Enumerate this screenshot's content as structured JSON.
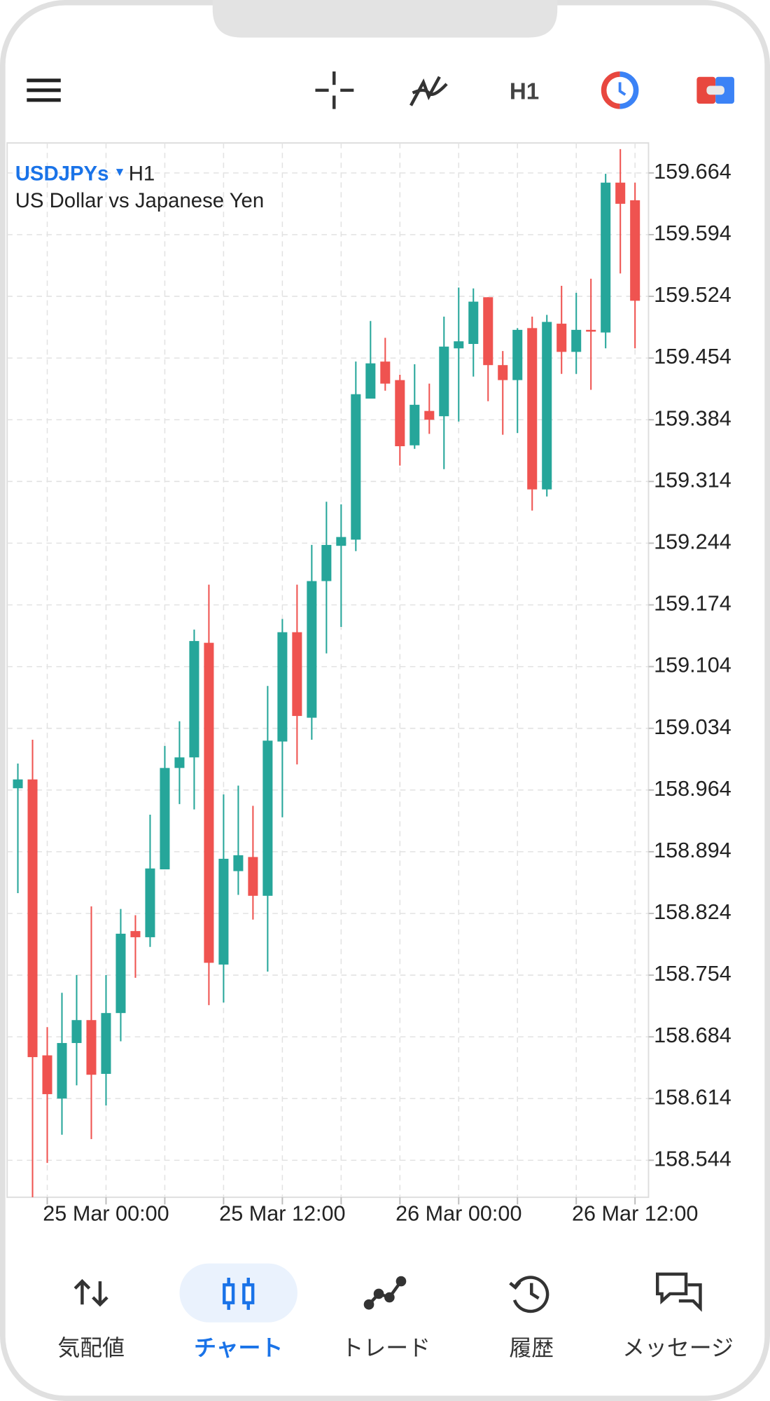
{
  "toolbar": {
    "timeframe": "H1"
  },
  "chart_data": {
    "type": "candlestick",
    "symbol": "USDJPYs",
    "timeframe": "H1",
    "description": "US Dollar vs Japanese Yen",
    "categories": [
      null,
      null,
      null,
      null,
      null,
      null,
      "25 Mar 00:00",
      null,
      null,
      null,
      null,
      null,
      null,
      null,
      null,
      null,
      null,
      null,
      "25 Mar 12:00",
      null,
      null,
      null,
      null,
      null,
      null,
      null,
      null,
      null,
      null,
      null,
      "26 Mar 00:00",
      null,
      null,
      null,
      null,
      null,
      null,
      null,
      null,
      null,
      null,
      null,
      "26 Mar 12:00"
    ],
    "open": [
      158.966,
      158.976,
      158.663,
      158.614,
      158.677,
      158.703,
      158.642,
      158.711,
      158.804,
      158.797,
      158.874,
      158.989,
      159.001,
      159.131,
      158.766,
      158.872,
      158.888,
      158.844,
      159.019,
      159.143,
      159.046,
      159.201,
      159.241,
      159.248,
      159.408,
      159.45,
      159.429,
      159.355,
      159.394,
      159.388,
      159.465,
      159.47,
      159.523,
      159.446,
      159.429,
      159.488,
      159.305,
      159.493,
      159.461,
      159.486,
      159.483,
      159.653,
      159.633
    ],
    "high": [
      158.994,
      159.021,
      158.695,
      158.734,
      158.754,
      158.832,
      158.754,
      158.829,
      158.822,
      158.936,
      159.014,
      159.042,
      159.146,
      159.197,
      158.959,
      158.969,
      158.946,
      159.082,
      159.158,
      159.197,
      159.242,
      159.291,
      159.288,
      159.45,
      159.496,
      159.477,
      159.435,
      159.447,
      159.425,
      159.501,
      159.534,
      159.533,
      159.523,
      159.462,
      159.488,
      159.501,
      159.503,
      159.536,
      159.528,
      159.544,
      159.663,
      159.691,
      159.653
    ],
    "low": [
      158.847,
      158.502,
      158.541,
      158.573,
      158.629,
      158.568,
      158.606,
      158.679,
      158.751,
      158.786,
      158.874,
      158.948,
      158.942,
      158.72,
      158.723,
      158.845,
      158.817,
      158.758,
      158.933,
      158.993,
      159.021,
      159.119,
      159.149,
      159.235,
      159.408,
      159.417,
      159.332,
      159.351,
      159.368,
      159.328,
      159.382,
      159.433,
      159.405,
      159.367,
      159.369,
      159.281,
      159.297,
      159.436,
      159.436,
      159.418,
      159.465,
      159.55,
      159.465
    ],
    "close": [
      158.976,
      158.661,
      158.619,
      158.677,
      158.703,
      158.641,
      158.711,
      158.801,
      158.797,
      158.875,
      158.989,
      159.001,
      159.133,
      158.768,
      158.886,
      158.89,
      158.844,
      159.02,
      159.143,
      159.048,
      159.201,
      159.242,
      159.251,
      159.413,
      159.448,
      159.425,
      159.354,
      159.401,
      159.384,
      159.467,
      159.473,
      159.518,
      159.446,
      159.429,
      159.486,
      159.305,
      159.495,
      159.461,
      159.486,
      159.484,
      159.653,
      159.629,
      159.519
    ],
    "up_color": "#26a69a",
    "down_color": "#ef5350",
    "ylim": [
      158.502,
      159.698
    ],
    "yticks": [
      158.544,
      158.614,
      158.684,
      158.754,
      158.824,
      158.894,
      158.964,
      159.034,
      159.104,
      159.174,
      159.244,
      159.314,
      159.384,
      159.454,
      159.524,
      159.594,
      159.664
    ],
    "grid": true
  },
  "nav": [
    {
      "label": "気配値"
    },
    {
      "label": "チャート"
    },
    {
      "label": "トレード"
    },
    {
      "label": "履歴"
    },
    {
      "label": "メッセージ"
    }
  ]
}
